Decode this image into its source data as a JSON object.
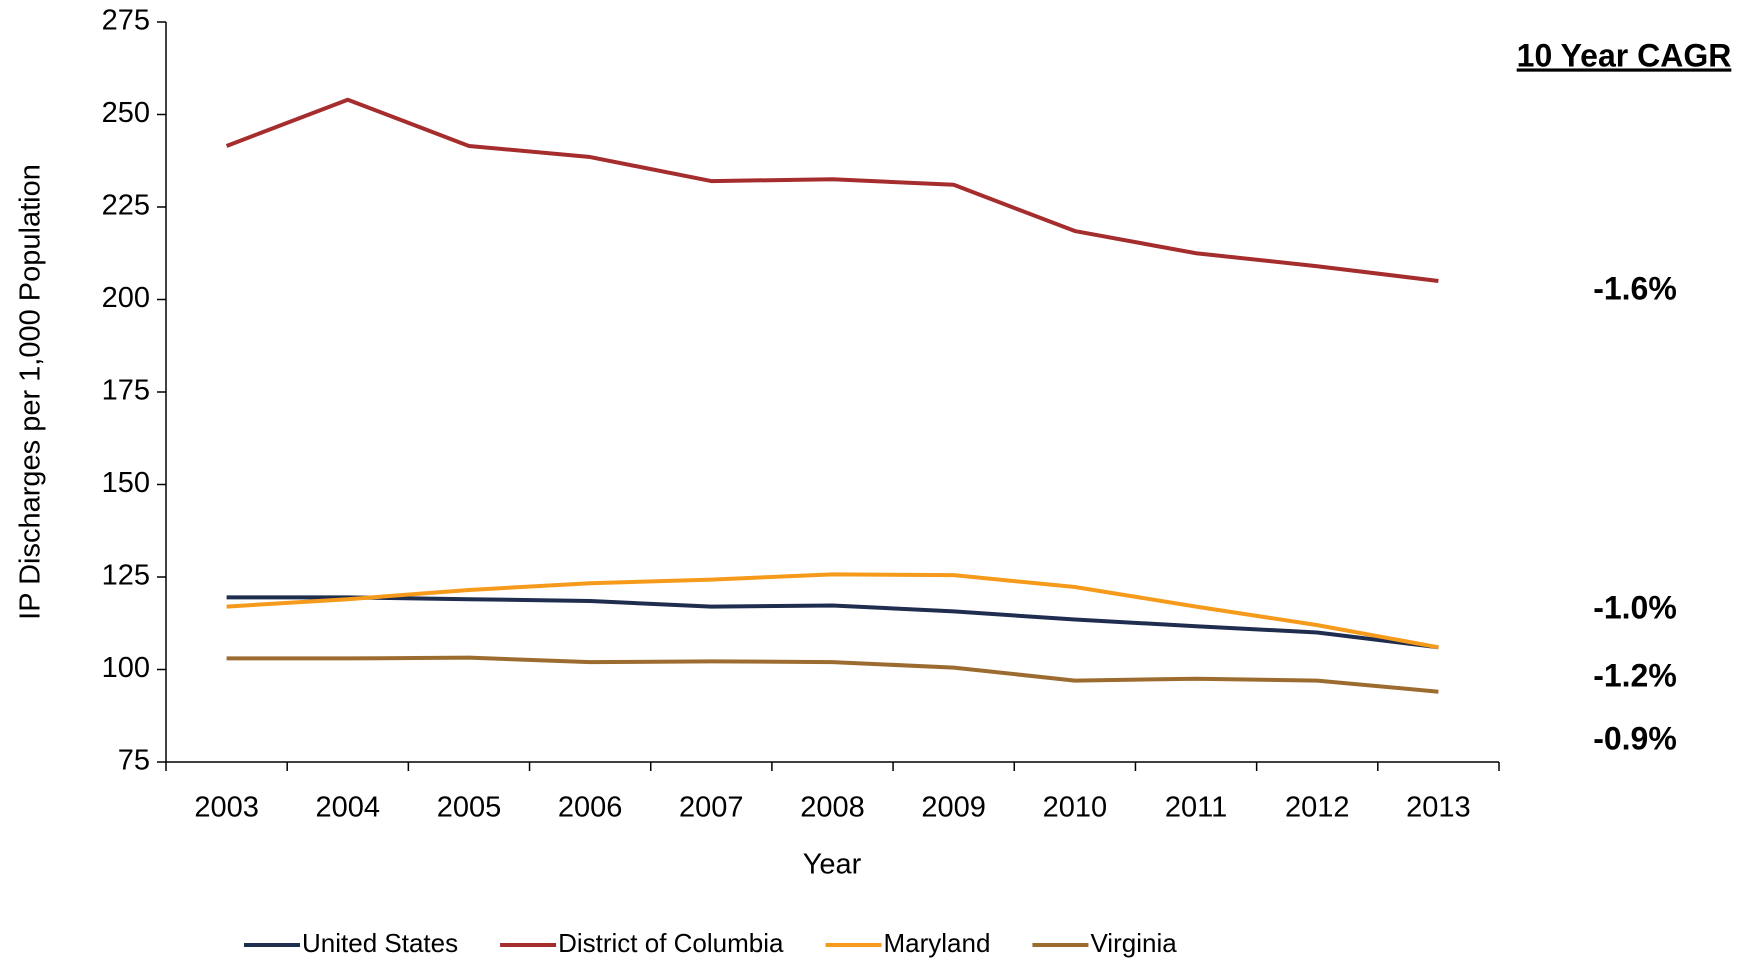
{
  "chart_data": {
    "type": "line",
    "y_label": "IP Discharges per 1,000 Population",
    "x_label": "Year",
    "categories": [
      "2003",
      "2004",
      "2005",
      "2006",
      "2007",
      "2008",
      "2009",
      "2010",
      "2011",
      "2012",
      "2013"
    ],
    "series": [
      {
        "name": "United States",
        "color": "#1f2d4f",
        "values": [
          119.5,
          119.5,
          119,
          118.5,
          117,
          117.3,
          115.7,
          113.5,
          111.7,
          110,
          106
        ]
      },
      {
        "name": "District of Columbia",
        "color": "#a52d2d",
        "values": [
          241.5,
          254,
          241.5,
          238.5,
          232,
          232.5,
          231,
          218.5,
          212.5,
          209,
          205
        ]
      },
      {
        "name": "Maryland",
        "color": "#f59a1a",
        "values": [
          117,
          119,
          121.5,
          123.3,
          124.3,
          125.7,
          125.5,
          122.3,
          117,
          112,
          106
        ]
      },
      {
        "name": "Virginia",
        "color": "#9c6b30",
        "values": [
          103,
          103,
          103.2,
          102,
          102.2,
          102,
          100.5,
          97,
          97.5,
          97,
          94
        ]
      }
    ],
    "ylim": [
      75,
      275
    ],
    "yticks": [
      75,
      100,
      125,
      150,
      175,
      200,
      225,
      250,
      275
    ],
    "grid": false,
    "legend": "bottom",
    "annotation_title": "10 Year CAGR",
    "annotations": [
      {
        "text": "-1.6%",
        "color": "#a52d2d"
      },
      {
        "text": "-1.0%",
        "color": "#f59a1a"
      },
      {
        "text": "-1.2%",
        "color": "#1f2d4f"
      },
      {
        "text": "-0.9%",
        "color": "#9c6b30"
      }
    ]
  }
}
